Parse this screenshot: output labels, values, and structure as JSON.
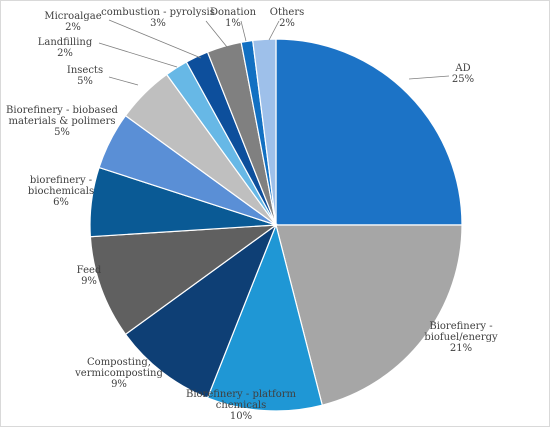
{
  "chart_data": {
    "type": "pie",
    "title": "",
    "slices": [
      {
        "lines": [
          "AD",
          "25%"
        ],
        "value": 25,
        "color": "#1c73c6"
      },
      {
        "lines": [
          "Biorefinery -",
          "biofuel/energy",
          "21%"
        ],
        "value": 21,
        "color": "#a6a6a6"
      },
      {
        "lines": [
          "Biorefinery - platform",
          "chemicals",
          "10%"
        ],
        "value": 10,
        "color": "#1f97d5"
      },
      {
        "lines": [
          "Composting,",
          "vermicomposting",
          "9%"
        ],
        "value": 9,
        "color": "#0e3f75"
      },
      {
        "lines": [
          "Feed",
          "9%"
        ],
        "value": 9,
        "color": "#606060"
      },
      {
        "lines": [
          "biorefinery -",
          "biochemicals",
          "6%"
        ],
        "value": 6,
        "color": "#0a5a95"
      },
      {
        "lines": [
          "Biorefinery - biobased",
          "materials & polimers",
          "5%"
        ],
        "value": 5,
        "color": "#5a8fd6"
      },
      {
        "lines": [
          "Insects",
          "5%"
        ],
        "value": 5,
        "color": "#bfbfbf"
      },
      {
        "lines": [
          "Landfilling",
          "2%"
        ],
        "value": 2,
        "color": "#67b8e6"
      },
      {
        "lines": [
          "Microalgae",
          "2%"
        ],
        "value": 2,
        "color": "#0d4f9c"
      },
      {
        "lines": [
          "combustion - pyrolysis",
          "3%"
        ],
        "value": 3,
        "color": "#808080"
      },
      {
        "lines": [
          "Donation",
          "1%"
        ],
        "value": 1,
        "color": "#1270c2"
      },
      {
        "lines": [
          "Others",
          "2%"
        ],
        "value": 2,
        "color": "#9ec0ea"
      }
    ]
  }
}
